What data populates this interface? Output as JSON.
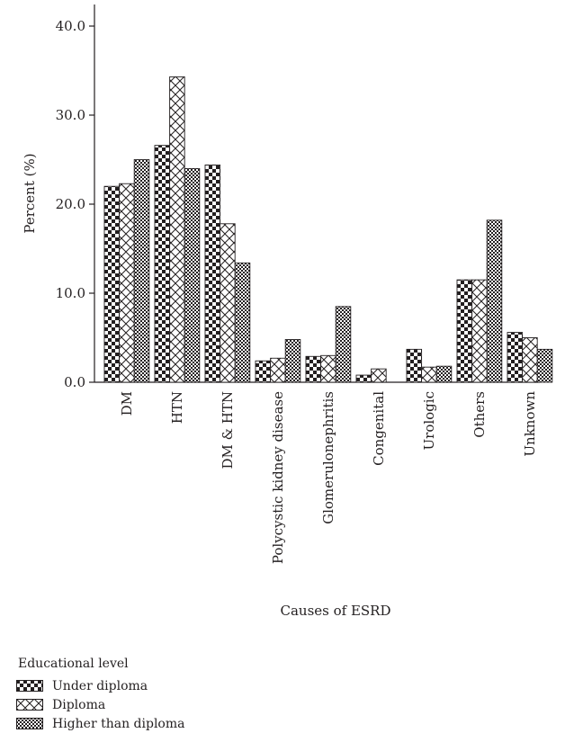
{
  "chart_data": {
    "type": "bar",
    "title": "",
    "xlabel": "Causes of ESRD",
    "ylabel": "Percent (%)",
    "ylim": [
      0,
      40
    ],
    "yticks": [
      "0.0",
      "10.0",
      "20.0",
      "30.0",
      "40.0"
    ],
    "categories": [
      "DM",
      "HTN",
      "DM & HTN",
      "Polycystic kidney disease",
      "Glomerulonephritis",
      "Congenital",
      "Urologic",
      "Others",
      "Unknown"
    ],
    "series": [
      {
        "name": "Under diploma",
        "pattern": "checker",
        "values": [
          22.0,
          26.6,
          24.4,
          2.4,
          2.9,
          0.8,
          3.7,
          11.5,
          5.6
        ]
      },
      {
        "name": "Diploma",
        "pattern": "crosshatch",
        "values": [
          22.3,
          34.3,
          17.8,
          2.7,
          3.0,
          1.5,
          1.7,
          11.5,
          5.0
        ]
      },
      {
        "name": "Higher than diploma",
        "pattern": "dense-dots",
        "values": [
          25.0,
          24.0,
          13.4,
          4.8,
          8.5,
          0.0,
          1.8,
          18.2,
          3.7
        ]
      }
    ],
    "grid": false,
    "legend": {
      "title": "Educational level",
      "placement": "bottom-left"
    },
    "colors": {
      "ink": "#231f20",
      "background": "#ffffff"
    }
  }
}
